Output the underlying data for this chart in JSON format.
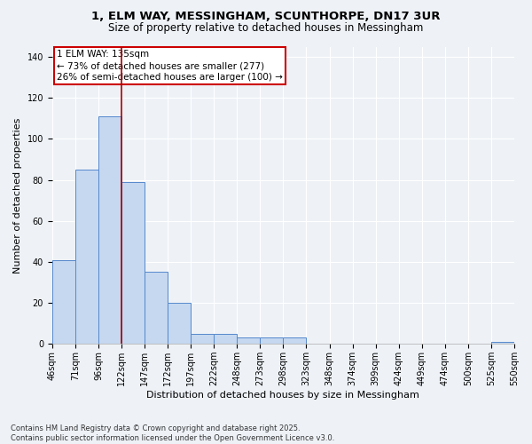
{
  "title1": "1, ELM WAY, MESSINGHAM, SCUNTHORPE, DN17 3UR",
  "title2": "Size of property relative to detached houses in Messingham",
  "xlabel": "Distribution of detached houses by size in Messingham",
  "ylabel": "Number of detached properties",
  "bar_values": [
    41,
    85,
    111,
    79,
    35,
    20,
    5,
    5,
    3,
    3,
    3,
    0,
    0,
    0,
    0,
    0,
    0,
    0,
    0,
    1
  ],
  "bin_labels": [
    "46sqm",
    "71sqm",
    "96sqm",
    "122sqm",
    "147sqm",
    "172sqm",
    "197sqm",
    "222sqm",
    "248sqm",
    "273sqm",
    "298sqm",
    "323sqm",
    "348sqm",
    "374sqm",
    "399sqm",
    "424sqm",
    "449sqm",
    "474sqm",
    "500sqm",
    "525sqm",
    "550sqm"
  ],
  "bar_color": "#c5d8f0",
  "bar_edge_color": "#5588cc",
  "bar_width": 1.0,
  "vline_color": "#aa0000",
  "vline_pos": 3.0,
  "ylim": [
    0,
    145
  ],
  "yticks": [
    0,
    20,
    40,
    60,
    80,
    100,
    120,
    140
  ],
  "annotation_text": "1 ELM WAY: 135sqm\n← 73% of detached houses are smaller (277)\n26% of semi-detached houses are larger (100) →",
  "footer1": "Contains HM Land Registry data © Crown copyright and database right 2025.",
  "footer2": "Contains public sector information licensed under the Open Government Licence v3.0.",
  "background_color": "#eef2f7",
  "plot_bg_color": "#eef2f7",
  "grid_color": "#ffffff",
  "title1_fontsize": 9.5,
  "title2_fontsize": 8.5,
  "axis_label_fontsize": 8,
  "tick_fontsize": 7,
  "num_bins": 20,
  "annotation_fontsize": 7.5
}
